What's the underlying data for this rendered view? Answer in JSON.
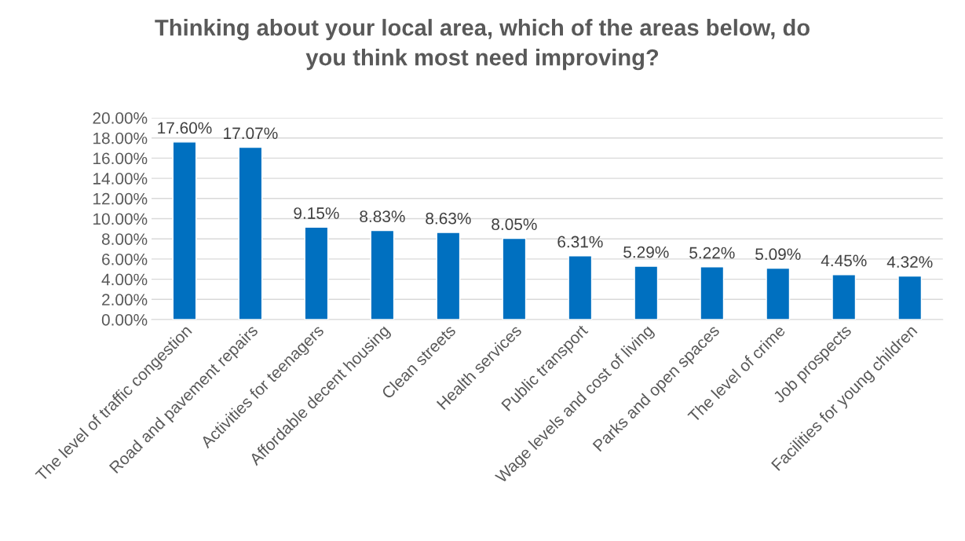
{
  "chart_data": {
    "type": "bar",
    "title": "Thinking about your local area, which of the areas below, do\nyou think most need improving?",
    "categories": [
      "The level of traffic congestion",
      "Road and pavement repairs",
      "Activities for teenagers",
      "Affordable decent housing",
      "Clean streets",
      "Health services",
      "Public transport",
      "Wage levels and cost of living",
      "Parks and open spaces",
      "The level of crime",
      "Job prospects",
      "Facilities for young children"
    ],
    "values": [
      17.6,
      17.07,
      9.15,
      8.83,
      8.63,
      8.05,
      6.31,
      5.29,
      5.22,
      5.09,
      4.45,
      4.32
    ],
    "value_labels": [
      "17.60%",
      "17.07%",
      "9.15%",
      "8.83%",
      "8.63%",
      "8.05%",
      "6.31%",
      "5.29%",
      "5.22%",
      "5.09%",
      "4.45%",
      "4.32%"
    ],
    "color": "#0070c0",
    "ylim": [
      0,
      20
    ],
    "yticks": [
      {
        "value": 0,
        "label": "0.00%"
      },
      {
        "value": 2,
        "label": "2.00%"
      },
      {
        "value": 4,
        "label": "4.00%"
      },
      {
        "value": 6,
        "label": "6.00%"
      },
      {
        "value": 8,
        "label": "8.00%"
      },
      {
        "value": 10,
        "label": "10.00%"
      },
      {
        "value": 12,
        "label": "12.00%"
      },
      {
        "value": 14,
        "label": "14.00%"
      },
      {
        "value": 16,
        "label": "16.00%"
      },
      {
        "value": 18,
        "label": "18.00%"
      },
      {
        "value": 20,
        "label": "20.00%"
      }
    ],
    "grid": "y",
    "legend": false
  }
}
